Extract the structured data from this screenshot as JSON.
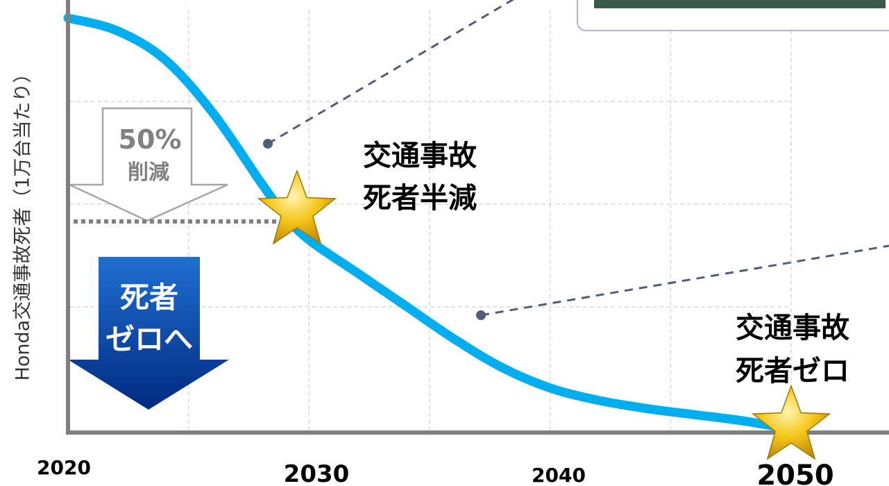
{
  "chart_data": {
    "type": "line",
    "title": "",
    "xlabel": "",
    "ylabel": "Honda交通事故死者（1万台当たり）",
    "x_ticks": [
      "2020",
      "2030",
      "2040",
      "2050"
    ],
    "xlim": [
      2020,
      2050
    ],
    "ylim": [
      0,
      100
    ],
    "grid": true,
    "series": [
      {
        "x": [
          2020,
          2022,
          2024,
          2026,
          2028,
          2029,
          2030,
          2032,
          2034,
          2036,
          2038,
          2040,
          2042,
          2044,
          2046,
          2048,
          2050
        ],
        "y": [
          100,
          97,
          90,
          77,
          60,
          52,
          46,
          38,
          30,
          22,
          15,
          10,
          7,
          5,
          3.5,
          2,
          0
        ]
      }
    ],
    "milestones": [
      {
        "x": 2029.5,
        "y": 50,
        "label_lines": [
          "交通事故",
          "死者半減"
        ]
      },
      {
        "x": 2050,
        "y": 0,
        "label_lines": [
          "交通事故",
          "死者ゼロ"
        ]
      }
    ],
    "reference_line_y": 50,
    "reduction_arrow": {
      "value": "50%",
      "text": "削減"
    },
    "zero_arrow": {
      "lines": [
        "死者",
        "ゼロへ"
      ]
    },
    "colors": {
      "curve": "#00aeef",
      "axis": "#7f7f7f",
      "grid": "#d9d9d9",
      "dash": "#4f5d75",
      "star": "#f5c518",
      "blue_arrow": "#003399"
    }
  }
}
